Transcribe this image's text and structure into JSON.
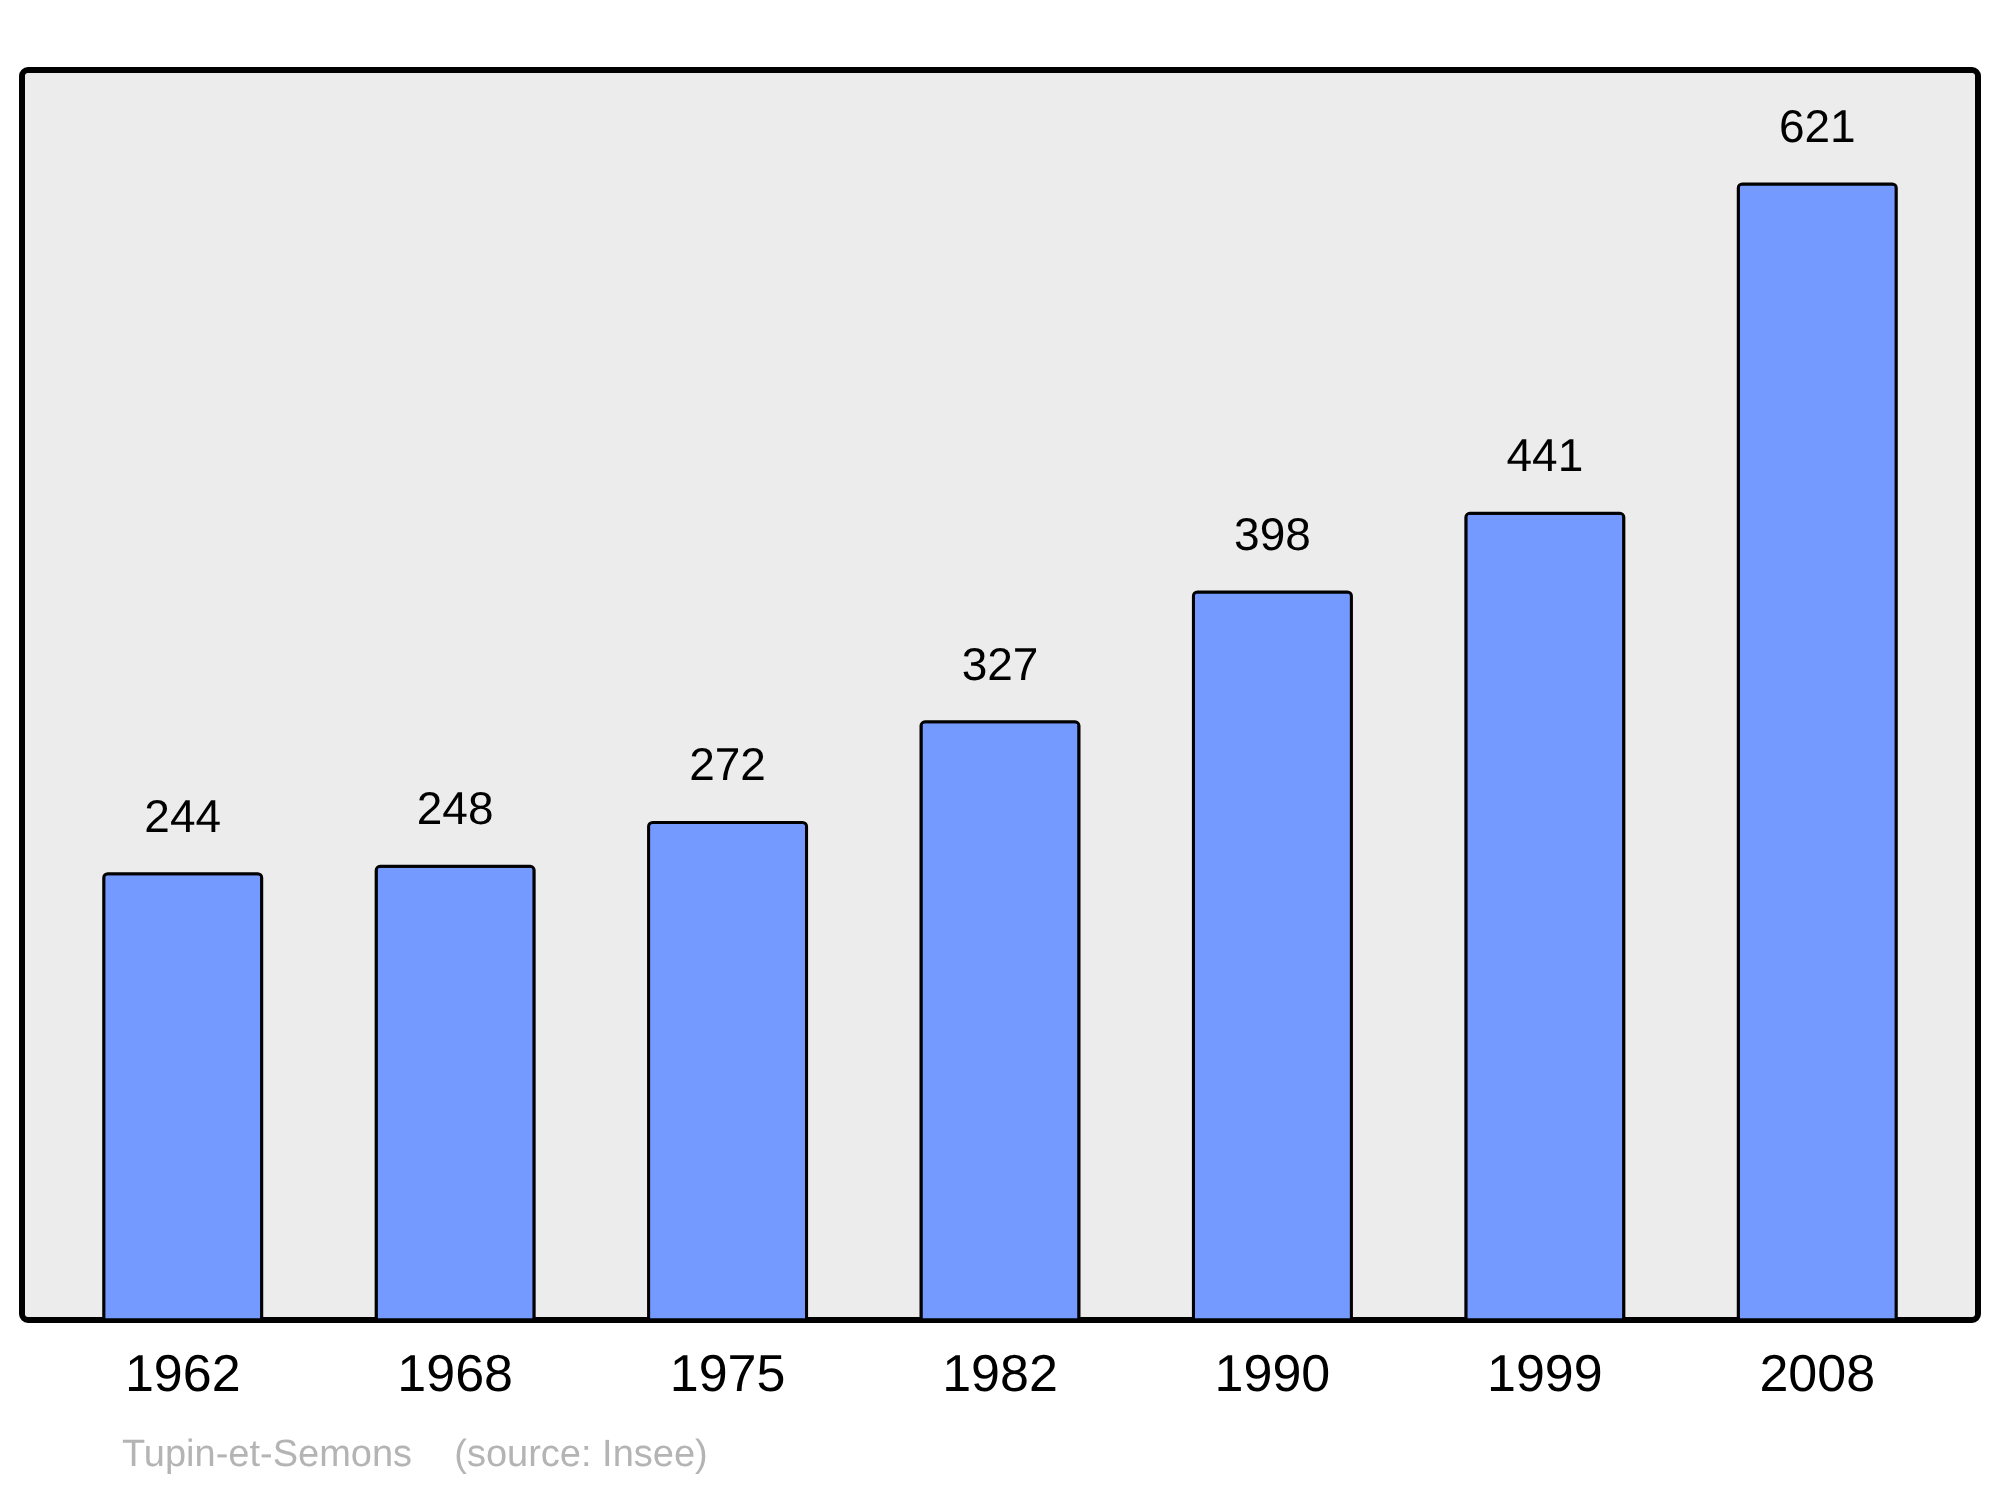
{
  "chart_data": {
    "type": "bar",
    "categories": [
      "1962",
      "1968",
      "1975",
      "1982",
      "1990",
      "1999",
      "2008"
    ],
    "values": [
      244,
      248,
      272,
      327,
      398,
      441,
      621
    ],
    "color": "#7499ff",
    "data_labels": true,
    "annotations": [
      "Tupin-et-Semons    (source: Insee)"
    ]
  }
}
